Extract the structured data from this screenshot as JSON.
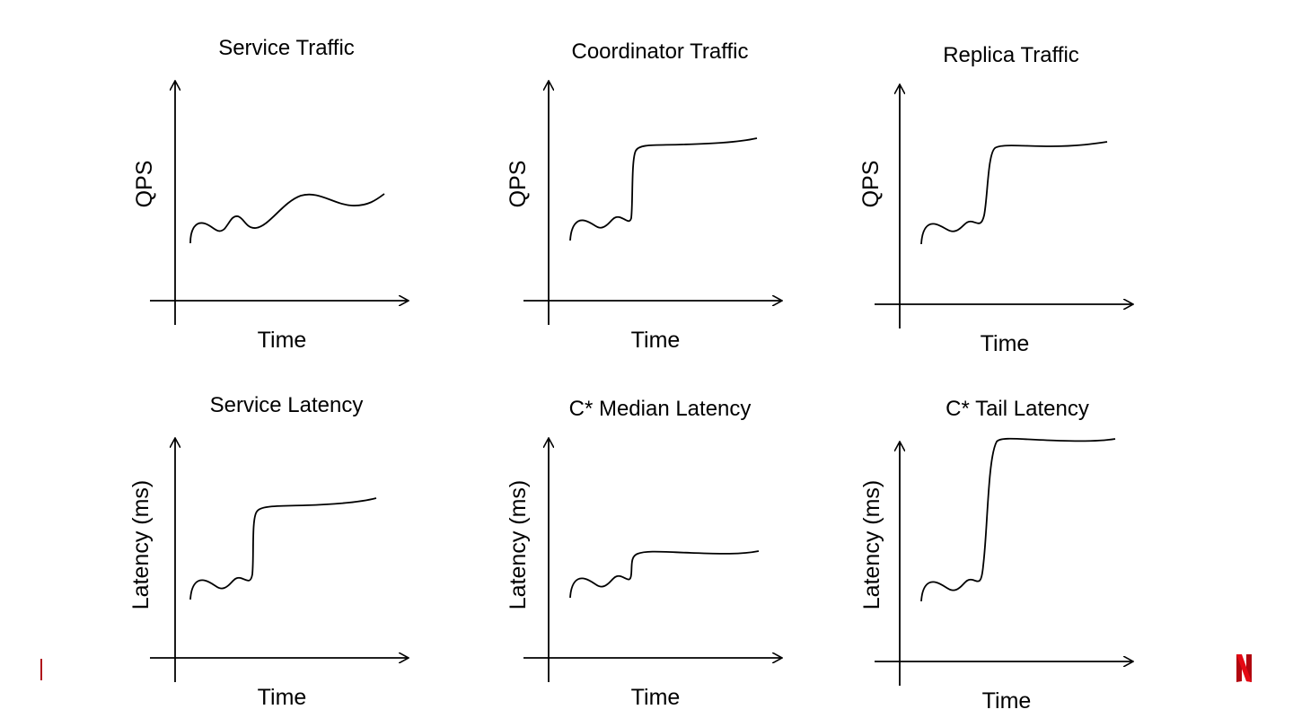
{
  "panels": [
    {
      "title": "Service Traffic",
      "ylabel": "QPS",
      "xlabel": "Time"
    },
    {
      "title": "Coordinator Traffic",
      "ylabel": "QPS",
      "xlabel": "Time"
    },
    {
      "title": "Replica Traffic",
      "ylabel": "QPS",
      "xlabel": "Time"
    },
    {
      "title": "Service Latency",
      "ylabel": "Latency (ms)",
      "xlabel": "Time"
    },
    {
      "title": "C* Median Latency",
      "ylabel": "Latency (ms)",
      "xlabel": "Time"
    },
    {
      "title": "C* Tail Latency",
      "ylabel": "Latency (ms)",
      "xlabel": "Time"
    }
  ],
  "logo": "N",
  "colors": {
    "brand": "#e50914",
    "accent_bar": "#b0121b"
  }
}
